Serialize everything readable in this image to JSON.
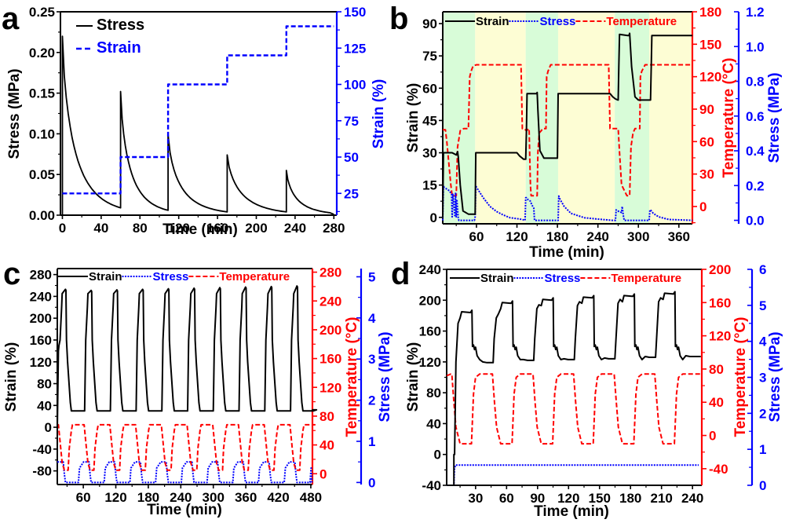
{
  "colors": {
    "black": "#000000",
    "red": "#ff0000",
    "blue": "#0000ff",
    "green_band": "#d8fcd8",
    "yellow_band": "#fdfdd4"
  },
  "chart_data": [
    {
      "panel": "a",
      "type": "line",
      "xlabel": "Time (min)",
      "ylabel": "Stress (MPa)",
      "y2label": "Strain (%)",
      "xlim": [
        -2,
        283
      ],
      "ylim": [
        0,
        0.25
      ],
      "y2lim": [
        10,
        150
      ],
      "xticks": [
        0,
        40,
        80,
        120,
        160,
        200,
        240,
        280
      ],
      "yticks": [
        "0.00",
        "0.05",
        "0.10",
        "0.15",
        "0.20",
        "0.25"
      ],
      "y2ticks": [
        25,
        50,
        75,
        100,
        125,
        150
      ],
      "legend": {
        "placement": "top-left",
        "entries": [
          {
            "label": "Stress",
            "style": "solid",
            "color": "#000000"
          },
          {
            "label": "Strain",
            "style": "dashed",
            "color": "#0000ff"
          }
        ]
      },
      "series": [
        {
          "name": "Stress",
          "axis": "left",
          "style": "solid",
          "color": "#000000",
          "segments": [
            {
              "t0": 0,
              "t1": 60,
              "peak": 0.22,
              "end": 0.009
            },
            {
              "t0": 60,
              "t1": 109,
              "peak": 0.152,
              "end": 0.006
            },
            {
              "t0": 109,
              "t1": 170,
              "peak": 0.099,
              "end": 0.004
            },
            {
              "t0": 170,
              "t1": 231,
              "peak": 0.074,
              "end": 0.004
            },
            {
              "t0": 231,
              "t1": 276,
              "peak": 0.055,
              "end": 0.003
            }
          ]
        },
        {
          "name": "Strain",
          "axis": "right",
          "style": "dashed",
          "color": "#0000ff",
          "x": [
            0,
            60,
            60,
            109,
            109,
            170,
            170,
            231,
            231,
            280
          ],
          "y": [
            25,
            25,
            50,
            50,
            100,
            100,
            120,
            120,
            140,
            140
          ]
        }
      ]
    },
    {
      "panel": "b",
      "type": "line",
      "xlabel": "Time (min)",
      "ylabel": "Strain (%)",
      "y2label": "Temperature (°C)",
      "y3label": "Stress (MPa)",
      "xlim": [
        10,
        380
      ],
      "ylim": [
        -3,
        95.5
      ],
      "y2lim": [
        -16,
        180
      ],
      "y3lim": [
        -0.02,
        1.2
      ],
      "xticks": [
        60,
        120,
        180,
        240,
        300,
        360
      ],
      "yticks": [
        0,
        15,
        30,
        45,
        60,
        75,
        90
      ],
      "y2ticks": [
        0,
        30,
        60,
        90,
        120,
        150,
        180
      ],
      "y3ticks": [
        "0.0",
        "0.2",
        "0.4",
        "0.6",
        "0.8",
        "1.0",
        "1.2"
      ],
      "legend": {
        "placement": "top",
        "entries": [
          {
            "label": "Strain",
            "style": "solid",
            "color": "#000000"
          },
          {
            "label": "Stress",
            "style": "dotted",
            "color": "#0000ff"
          },
          {
            "label": "Temperature",
            "style": "dashed",
            "color": "#ff0000"
          }
        ]
      },
      "bands": [
        {
          "from": 10,
          "to": 58,
          "color": "green"
        },
        {
          "from": 58,
          "to": 133,
          "color": "yellow"
        },
        {
          "from": 133,
          "to": 181,
          "color": "green"
        },
        {
          "from": 181,
          "to": 265,
          "color": "yellow"
        },
        {
          "from": 265,
          "to": 316,
          "color": "green"
        },
        {
          "from": 316,
          "to": 380,
          "color": "yellow"
        }
      ],
      "series": [
        {
          "name": "Strain",
          "axis": "left",
          "style": "solid",
          "color": "#000000",
          "x": [
            10,
            11,
            12,
            24,
            30,
            32,
            33,
            36,
            40,
            48,
            56,
            58,
            59,
            60,
            120,
            124,
            130,
            133,
            134,
            135,
            147,
            149,
            150,
            151,
            154,
            160,
            170,
            180,
            181,
            182,
            258,
            262,
            266,
            270,
            271,
            272,
            284,
            286,
            287,
            290,
            295,
            300,
            318,
            319,
            320,
            380
          ],
          "y": [
            0,
            30,
            30,
            30,
            29,
            30.5,
            28,
            15,
            3,
            1.5,
            1.5,
            1.5,
            30,
            30,
            30,
            28.5,
            27,
            27,
            40,
            57.5,
            57.5,
            57.5,
            58,
            50,
            31,
            27.5,
            27.5,
            27.5,
            57.5,
            57.5,
            57.5,
            56,
            55,
            54.5,
            70,
            85,
            84.5,
            84.5,
            85.5,
            70,
            56,
            54.5,
            54.5,
            70,
            84.5,
            84.5
          ]
        },
        {
          "name": "Stress",
          "axis": "right2",
          "style": "dotted",
          "color": "#0000ff",
          "x": [
            10,
            11,
            12,
            20,
            23,
            24,
            25,
            28,
            29,
            30,
            31,
            33,
            34,
            36,
            57,
            58,
            59,
            60,
            70,
            80,
            90,
            100,
            110,
            120,
            128,
            132,
            133,
            134,
            136,
            140,
            142,
            145,
            146,
            150,
            181,
            182,
            184,
            190,
            200,
            220,
            240,
            262,
            266,
            267,
            268,
            272,
            275,
            276,
            278,
            279,
            280,
            316,
            317,
            318,
            322,
            330,
            345,
            380
          ],
          "y": [
            0,
            0.2,
            0.19,
            0.17,
            0.15,
            0.02,
            0.15,
            0.02,
            0.16,
            0.02,
            0.12,
            0.01,
            0,
            0,
            0,
            0.02,
            0.2,
            0.19,
            0.13,
            0.08,
            0.05,
            0.03,
            0.015,
            0.01,
            0.005,
            0,
            0.13,
            0.13,
            0.12,
            0.11,
            0.09,
            0.07,
            0,
            0,
            0,
            0.14,
            0.12,
            0.08,
            0.04,
            0.015,
            0.007,
            0,
            0,
            0.06,
            0.055,
            0.05,
            0.045,
            0.08,
            0.02,
            0,
            0,
            0,
            0.06,
            0.06,
            0.04,
            0.02,
            0.005,
            0
          ]
        },
        {
          "name": "Temperature",
          "axis": "right",
          "style": "dashed",
          "color": "#ff0000",
          "x": [
            10,
            14,
            16,
            22,
            24,
            28,
            30,
            32,
            36,
            41,
            46,
            48,
            50,
            52,
            55,
            60,
            126,
            127,
            128,
            131,
            134,
            138,
            140,
            141,
            148,
            150,
            151,
            153,
            156,
            158,
            163,
            164,
            166,
            170,
            256,
            257,
            258,
            261,
            266,
            270,
            272,
            275,
            283,
            285,
            287,
            289,
            292,
            295,
            302,
            303,
            305,
            310,
            380
          ],
          "y": [
            71,
            71,
            60,
            20,
            10,
            10,
            10,
            55,
            70,
            72,
            72,
            72,
            120,
            125,
            130,
            131,
            131,
            100,
            72,
            72,
            70,
            72,
            20,
            10,
            10,
            10,
            50,
            68,
            70,
            72,
            72,
            120,
            125,
            131,
            131,
            100,
            72,
            72,
            72,
            72,
            50,
            20,
            10,
            10,
            10,
            55,
            68,
            72,
            72,
            120,
            125,
            131,
            131
          ]
        }
      ]
    },
    {
      "panel": "c",
      "type": "line",
      "xlabel": "Time (min)",
      "ylabel": "Strain (%)",
      "y2label": "Temperature (°C)",
      "y3label": "Stress (MPa)",
      "xlim": [
        12,
        483
      ],
      "ylim": [
        -105,
        291
      ],
      "y2lim": [
        -15,
        285
      ],
      "y3lim": [
        -0.05,
        5.2
      ],
      "xticks": [
        60,
        120,
        180,
        240,
        300,
        360,
        420,
        480
      ],
      "yticks": [
        -80,
        -40,
        0,
        40,
        80,
        120,
        160,
        200,
        240,
        280
      ],
      "y2ticks": [
        0,
        40,
        80,
        120,
        160,
        200,
        240,
        280
      ],
      "y3ticks": [
        0,
        1,
        2,
        3,
        4,
        5
      ],
      "legend": {
        "placement": "top",
        "entries": [
          {
            "label": "Strain",
            "style": "solid",
            "color": "#000000"
          },
          {
            "label": "Stress",
            "style": "dotted",
            "color": "#0000ff"
          },
          {
            "label": "Temperature",
            "style": "dashed",
            "color": "#ff0000"
          }
        ]
      },
      "cycles": {
        "count": 10,
        "period": 47.5,
        "start": 12,
        "strain": {
          "low": 30,
          "high": [
            253,
            251,
            252,
            253,
            254,
            255,
            256,
            257,
            258,
            259
          ]
        },
        "temperature": {
          "low": 5,
          "high": 68
        },
        "stress": {
          "low": 0,
          "high": 0.5
        }
      }
    },
    {
      "panel": "d",
      "type": "line",
      "xlabel": "Time (min)",
      "ylabel": "Strain (%)",
      "y2label": "Temperature (°C)",
      "y3label": "Stress (MPa)",
      "xlim": [
        2,
        249
      ],
      "ylim": [
        -40,
        240
      ],
      "y2lim": [
        -60,
        200
      ],
      "y3lim": [
        0,
        6
      ],
      "xticks": [
        30,
        60,
        90,
        120,
        150,
        180,
        210,
        240
      ],
      "yticks": [
        -40,
        0,
        40,
        80,
        120,
        160,
        200,
        240
      ],
      "y2ticks": [
        -40,
        0,
        40,
        80,
        120,
        160,
        200
      ],
      "y3ticks": [
        0,
        1,
        2,
        3,
        4,
        5,
        6
      ],
      "legend": {
        "placement": "top",
        "entries": [
          {
            "label": "Strain",
            "style": "solid",
            "color": "#000000"
          },
          {
            "label": "Stress",
            "style": "dotted",
            "color": "#0000ff"
          },
          {
            "label": "Temperature",
            "style": "dashed",
            "color": "#ff0000"
          }
        ]
      },
      "cycles": {
        "count": 6,
        "period": 39.3,
        "start": 9,
        "strain": {
          "high": [
            185,
            197,
            201,
            204,
            206,
            209
          ],
          "low": [
            119,
            122,
            123,
            124,
            126,
            127
          ]
        },
        "temperature": {
          "low": -10,
          "high": 74
        },
        "stress": {
          "value": 0.56
        }
      }
    }
  ],
  "panels": {
    "a": {
      "letter": "a",
      "xlabel": "Time (min)",
      "ylabel": "Stress (MPa)",
      "y2label": "Strain (%)",
      "legend": [
        "Stress",
        "Strain"
      ]
    },
    "b": {
      "letter": "b",
      "xlabel": "Time (min)",
      "ylabel": "Strain (%)",
      "y2label": "Temperature (°C)",
      "y3label": "Stress (MPa)",
      "legend": [
        "Strain",
        "Stress",
        "Temperature"
      ]
    },
    "c": {
      "letter": "c",
      "xlabel": "Time (min)",
      "ylabel": "Strain (%)",
      "y2label": "Temperature (°C)",
      "y3label": "Stress (MPa)",
      "legend": [
        "Strain",
        "Stress",
        "Temperature"
      ]
    },
    "d": {
      "letter": "d",
      "xlabel": "Time (min)",
      "ylabel": "Strain (%)",
      "y2label": "Temperature (°C)",
      "y3label": "Stress (MPa)",
      "legend": [
        "Strain",
        "Stress",
        "Temperature"
      ]
    }
  }
}
